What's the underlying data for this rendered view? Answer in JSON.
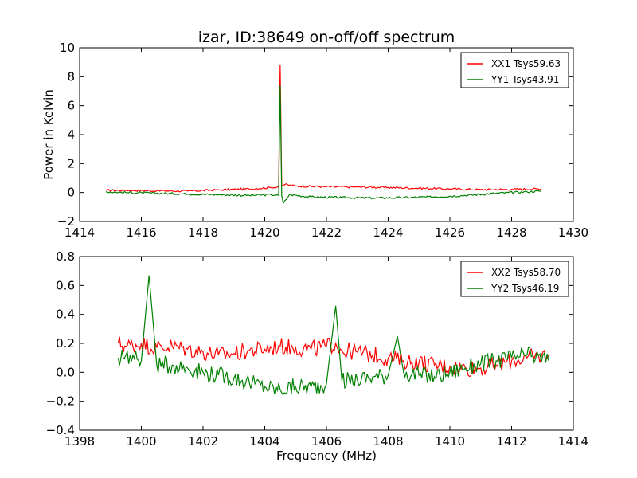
{
  "figure": {
    "title": "izar, ID:38649 on-off/off spectrum",
    "ylabel": "Power in Kelvin",
    "xlabel": "Frequency (MHz)"
  },
  "chart_data": [
    {
      "type": "line",
      "title": "izar, ID:38649 on-off/off spectrum",
      "xlabel": "",
      "ylabel": "Power in Kelvin",
      "xlim": [
        1414,
        1430
      ],
      "ylim": [
        -2,
        10
      ],
      "xticks": [
        1414,
        1416,
        1418,
        1420,
        1422,
        1424,
        1426,
        1428,
        1430
      ],
      "yticks": [
        -2,
        0,
        2,
        4,
        6,
        8,
        10
      ],
      "legend_position": "top-right",
      "series": [
        {
          "name": "XX1 Tsys59.63",
          "color": "#ff0000",
          "x": [
            1414.85,
            1415.5,
            1416.5,
            1417.5,
            1418.5,
            1419.5,
            1420.2,
            1420.45,
            1420.5,
            1420.55,
            1420.65,
            1421,
            1422,
            1423,
            1424,
            1425,
            1426,
            1427,
            1428,
            1428.95
          ],
          "y": [
            0.15,
            0.15,
            0.12,
            0.1,
            0.18,
            0.25,
            0.35,
            0.4,
            8.8,
            0.45,
            0.55,
            0.45,
            0.4,
            0.38,
            0.35,
            0.3,
            0.25,
            0.2,
            0.22,
            0.25
          ]
        },
        {
          "name": "YY1 Tsys43.91",
          "color": "#008000",
          "x": [
            1414.85,
            1415.5,
            1416.5,
            1417.5,
            1418.5,
            1419.5,
            1420.2,
            1420.45,
            1420.5,
            1420.55,
            1420.6,
            1420.8,
            1421.5,
            1422.5,
            1423.5,
            1424.5,
            1425.5,
            1426.5,
            1427.5,
            1428.5,
            1428.95
          ],
          "y": [
            0.05,
            0.0,
            -0.05,
            -0.1,
            -0.15,
            -0.2,
            -0.15,
            -0.2,
            7.4,
            -0.2,
            -0.75,
            -0.15,
            -0.3,
            -0.35,
            -0.38,
            -0.35,
            -0.3,
            -0.2,
            -0.05,
            0.05,
            0.1
          ]
        }
      ]
    },
    {
      "type": "line",
      "title": "",
      "xlabel": "Frequency (MHz)",
      "ylabel": "",
      "xlim": [
        1398,
        1414
      ],
      "ylim": [
        -0.4,
        0.8
      ],
      "xticks": [
        1398,
        1400,
        1402,
        1404,
        1406,
        1408,
        1410,
        1412,
        1414
      ],
      "yticks": [
        -0.4,
        -0.2,
        0.0,
        0.2,
        0.4,
        0.6,
        0.8
      ],
      "legend_position": "top-right",
      "series": [
        {
          "name": "XX2 Tsys58.70",
          "color": "#ff0000",
          "x": [
            1399.25,
            1399.5,
            1400,
            1400.5,
            1401,
            1401.5,
            1402,
            1402.5,
            1403,
            1403.5,
            1404,
            1404.5,
            1405,
            1405.5,
            1406,
            1406.3,
            1406.5,
            1407,
            1407.5,
            1408,
            1408.5,
            1409,
            1409.5,
            1410,
            1410.5,
            1411,
            1411.5,
            1412,
            1412.5,
            1413.2
          ],
          "y": [
            0.2,
            0.18,
            0.2,
            0.17,
            0.18,
            0.16,
            0.14,
            0.12,
            0.13,
            0.15,
            0.16,
            0.18,
            0.17,
            0.16,
            0.18,
            0.2,
            0.15,
            0.14,
            0.12,
            0.1,
            0.08,
            0.07,
            0.05,
            0.04,
            0.03,
            0.03,
            0.05,
            0.08,
            0.1,
            0.12
          ]
        },
        {
          "name": "YY2 Tsys46.19",
          "color": "#008000",
          "x": [
            1399.25,
            1399.5,
            1400,
            1400.25,
            1400.5,
            1401,
            1401.5,
            1402,
            1402.5,
            1403,
            1403.5,
            1404,
            1404.5,
            1405,
            1405.5,
            1406,
            1406.3,
            1406.5,
            1407,
            1407.5,
            1408,
            1408.3,
            1408.5,
            1409,
            1409.5,
            1410,
            1410.5,
            1411,
            1411.5,
            1412,
            1412.5,
            1413.2
          ],
          "y": [
            0.1,
            0.12,
            0.08,
            0.67,
            0.05,
            0.05,
            0.03,
            0.0,
            -0.02,
            -0.04,
            -0.07,
            -0.1,
            -0.12,
            -0.1,
            -0.1,
            -0.08,
            0.46,
            -0.06,
            -0.05,
            -0.03,
            -0.02,
            0.25,
            0.0,
            -0.02,
            -0.03,
            0.0,
            0.03,
            0.06,
            0.08,
            0.1,
            0.12,
            0.08
          ]
        }
      ]
    }
  ]
}
